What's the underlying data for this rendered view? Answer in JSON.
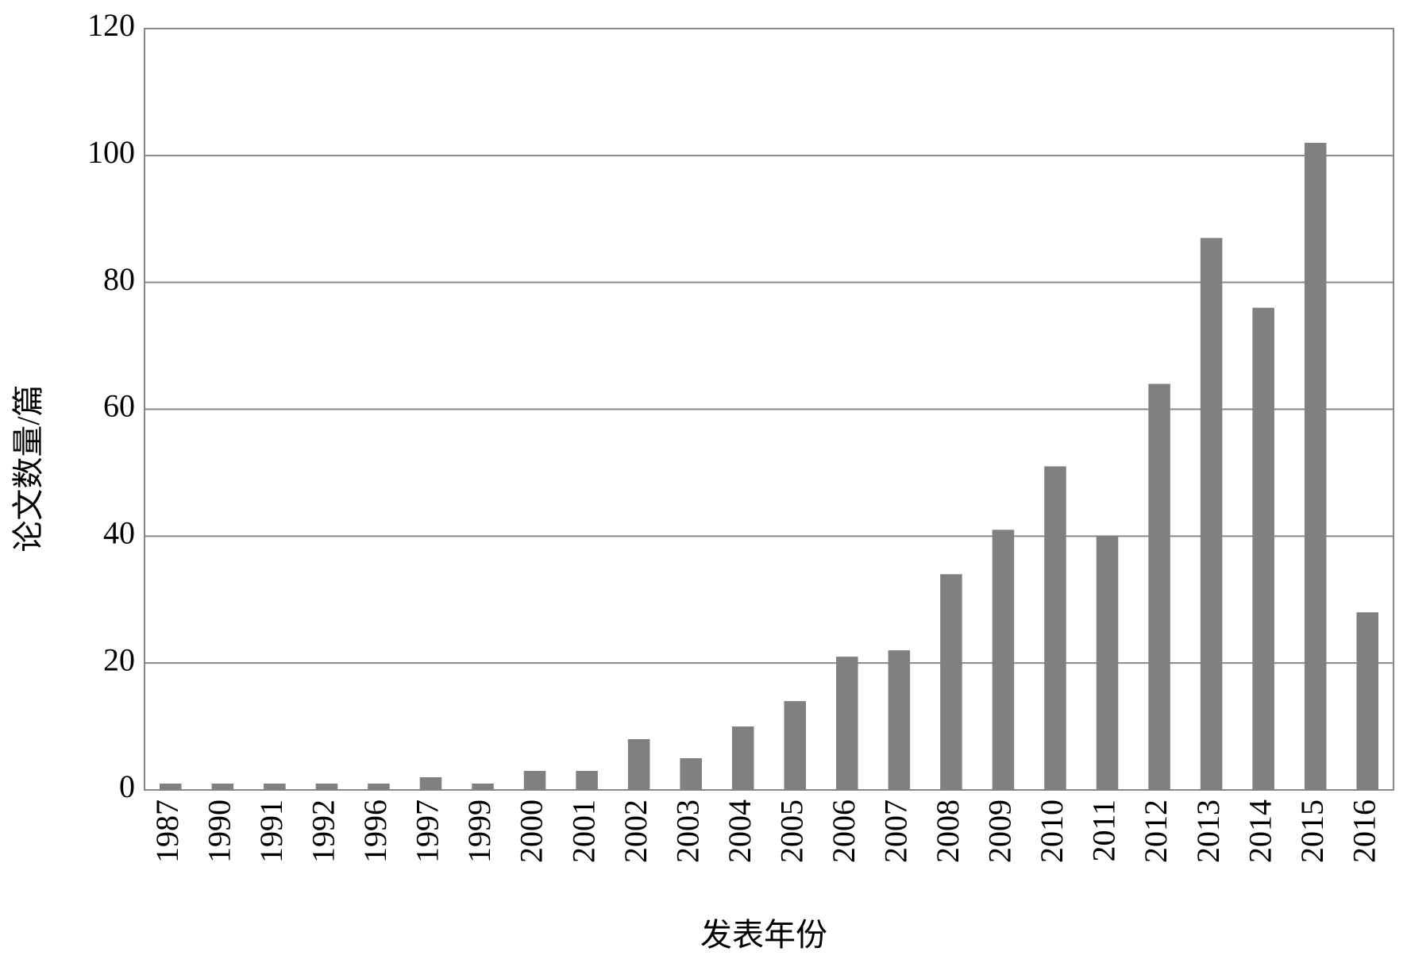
{
  "chart_data": {
    "type": "bar",
    "x_label": "发表年份",
    "y_label": "论文数量/篇",
    "categories": [
      "1987",
      "1990",
      "1991",
      "1992",
      "1996",
      "1997",
      "1999",
      "2000",
      "2001",
      "2002",
      "2003",
      "2004",
      "2005",
      "2006",
      "2007",
      "2008",
      "2009",
      "2010",
      "2011",
      "2012",
      "2013",
      "2014",
      "2015",
      "2016"
    ],
    "values": [
      1,
      1,
      1,
      1,
      1,
      2,
      1,
      3,
      3,
      8,
      5,
      10,
      14,
      21,
      22,
      34,
      41,
      51,
      40,
      64,
      87,
      76,
      102,
      28
    ],
    "color": "#808080",
    "ylim": [
      0,
      120
    ],
    "yticks": [
      0,
      20,
      40,
      60,
      80,
      100,
      120
    ],
    "grid": true
  }
}
